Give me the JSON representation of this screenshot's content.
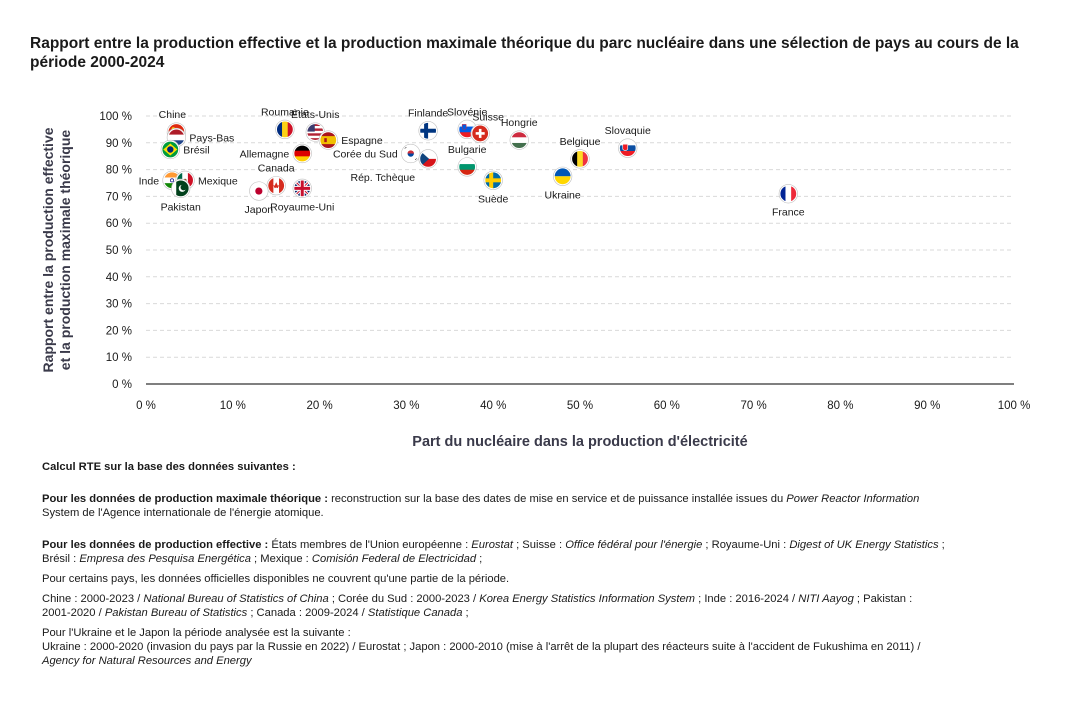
{
  "title": "Rapport entre la production effective et la production maximale théorique du parc nucléaire dans une sélection de pays au cours de la période 2000-2024",
  "chart_data": {
    "type": "scatter",
    "xlabel": "Part du nucléaire dans la production d'électricité",
    "ylabel_line1": "Rapport entre la production effective",
    "ylabel_line2": "et la production maximale théorique",
    "xlim": [
      0,
      100
    ],
    "ylim": [
      0,
      100
    ],
    "x_ticks": [
      "0 %",
      "10 %",
      "20 %",
      "30 %",
      "40 %",
      "50 %",
      "60 %",
      "70 %",
      "80 %",
      "90 %",
      "100 %"
    ],
    "y_ticks": [
      "0 %",
      "10 %",
      "20 %",
      "30 %",
      "40 %",
      "50 %",
      "60 %",
      "70 %",
      "80 %",
      "90 %",
      "100 %"
    ],
    "grid": true,
    "points": [
      {
        "name": "Chine",
        "x": 3.5,
        "y": 94,
        "flag": "china",
        "label_pos": "top-left"
      },
      {
        "name": "Pays-Bas",
        "x": 3.5,
        "y": 92,
        "flag": "netherlands",
        "label_pos": "right"
      },
      {
        "name": "Brésil",
        "x": 2.8,
        "y": 87.5,
        "flag": "brazil",
        "label_pos": "right"
      },
      {
        "name": "Inde",
        "x": 3.0,
        "y": 76,
        "flag": "india",
        "label_pos": "left"
      },
      {
        "name": "Mexique",
        "x": 4.5,
        "y": 76,
        "flag": "mexico",
        "label_pos": "right"
      },
      {
        "name": "Pakistan",
        "x": 4.0,
        "y": 73,
        "flag": "pakistan",
        "label_pos": "bottom"
      },
      {
        "name": "Roumanie",
        "x": 16,
        "y": 95,
        "flag": "romania",
        "label_pos": "top"
      },
      {
        "name": "Allemagne",
        "x": 18,
        "y": 86,
        "flag": "germany",
        "label_pos": "left"
      },
      {
        "name": "Canada",
        "x": 15,
        "y": 74,
        "flag": "canada",
        "label_pos": "top"
      },
      {
        "name": "Japon",
        "x": 13,
        "y": 72,
        "flag": "japan",
        "label_pos": "bottom"
      },
      {
        "name": "Royaume-Uni",
        "x": 18,
        "y": 73,
        "flag": "uk",
        "label_pos": "bottom"
      },
      {
        "name": "États-Unis",
        "x": 19.5,
        "y": 94,
        "flag": "usa",
        "label_pos": "top"
      },
      {
        "name": "Espagne",
        "x": 21,
        "y": 91,
        "flag": "spain",
        "label_pos": "right"
      },
      {
        "name": "Corée du Sud",
        "x": 30.5,
        "y": 86,
        "flag": "southkorea",
        "label_pos": "left"
      },
      {
        "name": "Rép. Tchèque",
        "x": 32.5,
        "y": 84,
        "flag": "czech",
        "label_pos": "bottom-left"
      },
      {
        "name": "Finlande",
        "x": 32.5,
        "y": 94.5,
        "flag": "finland",
        "label_pos": "top"
      },
      {
        "name": "Slovénie",
        "x": 37,
        "y": 95,
        "flag": "slovenia",
        "label_pos": "top"
      },
      {
        "name": "Suisse",
        "x": 38.5,
        "y": 93.5,
        "flag": "switzerland",
        "label_pos": "top-right"
      },
      {
        "name": "Bulgarie",
        "x": 37,
        "y": 81,
        "flag": "bulgaria",
        "label_pos": "top"
      },
      {
        "name": "Suède",
        "x": 40,
        "y": 76,
        "flag": "sweden",
        "label_pos": "bottom"
      },
      {
        "name": "Hongrie",
        "x": 43,
        "y": 91,
        "flag": "hungary",
        "label_pos": "top"
      },
      {
        "name": "Belgique",
        "x": 50,
        "y": 84,
        "flag": "belgium",
        "label_pos": "top"
      },
      {
        "name": "Ukraine",
        "x": 48,
        "y": 77.5,
        "flag": "ukraine",
        "label_pos": "bottom"
      },
      {
        "name": "Slovaquie",
        "x": 55.5,
        "y": 88,
        "flag": "slovakia",
        "label_pos": "top"
      },
      {
        "name": "France",
        "x": 74,
        "y": 71,
        "flag": "france",
        "label_pos": "bottom"
      }
    ],
    "colors": {
      "axis": "#333333",
      "grid": "#d9d9d9",
      "label": "#1a1a1a",
      "axis_title": "#3a3a4a"
    }
  },
  "notes": {
    "intro": "Calcul RTE sur la base des données suivantes :",
    "p1_bold": "Pour les données de production maximale théorique :",
    "p1_text1": " reconstruction sur la base des dates de mise en service et de puissance installée issues du ",
    "p1_italic": "Power Reactor Information",
    "p1_text2": "System de l'Agence internationale de l'énergie atomique.",
    "p2_bold": "Pour les données de production effective :",
    "p2_t1": " États membres de l'Union européenne : ",
    "p2_i1": "Eurostat",
    "p2_t2": " ; Suisse : ",
    "p2_i2": "Office fédéral pour l'énergie",
    "p2_t3": " ; Royaume-Uni : ",
    "p2_i3": "Digest of UK Energy Statistics",
    "p2_t4": " ;",
    "p2_t5": "Brésil : ",
    "p2_i5": "Empresa des Pesquisa Energética",
    "p2_t6": " ; Mexique : ",
    "p2_i6": "Comisión Federal de Electricidad",
    "p2_t7": " ;",
    "p3": "Pour certains pays, les données officielles disponibles ne couvrent qu'une partie de la période.",
    "p4_t1": "Chine : 2000-2023 / ",
    "p4_i1": "National Bureau of Statistics of China",
    "p4_t2": "  ; Corée du Sud : 2000-2023 / ",
    "p4_i2": "Korea Energy Statistics Information System",
    "p4_t3": " ; Inde : 2016-2024 / ",
    "p4_i3": "NITI Aayog",
    "p4_t4": " ; Pakistan :",
    "p4_t5": "2001-2020 / ",
    "p4_i5": "Pakistan Bureau of Statistics",
    "p4_t6": " ; Canada : 2009-2024 / ",
    "p4_i6": "Statistique Canada",
    "p4_t7": " ;",
    "p5_l1": "Pour l'Ukraine et le Japon la période analysée est la suivante :",
    "p5_l2": "Ukraine : 2000-2020 (invasion du pays par la Russie en 2022) / Eurostat ; Japon : 2000-2010 (mise à l'arrêt de la plupart des réacteurs suite à l'accident de Fukushima en 2011) /",
    "p5_i3": "Agency for Natural Resources and Energy"
  }
}
